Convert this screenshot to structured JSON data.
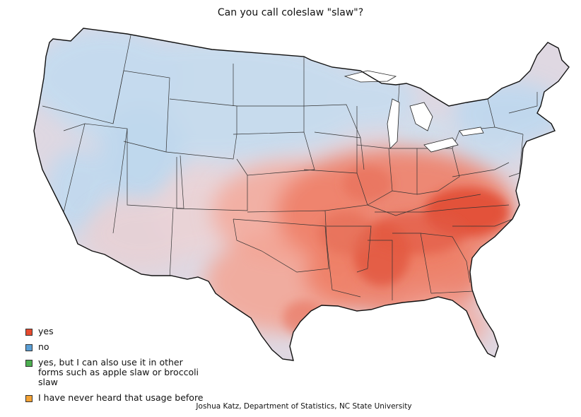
{
  "title": "Can you call coleslaw \"slaw\"?",
  "legend": [
    {
      "label": "yes",
      "color": "#e64a2e"
    },
    {
      "label": "no",
      "color": "#5a9fd6"
    },
    {
      "label": "yes, but I can also use it in other forms such as apple slaw or broccoli slaw",
      "color": "#4caf50"
    },
    {
      "label": "I have never heard that usage before",
      "color": "#f4a234"
    }
  ],
  "credit": "Joshua Katz, Department of Statistics, NC State University",
  "colors": {
    "yes": "#e64a2e",
    "no": "#5a9fd6",
    "neutral": "#e2d6de",
    "border": "#1a1a1a",
    "state_lines": "#333333"
  },
  "regions": {
    "north_and_west": "no",
    "south_and_midwest_core": "yes"
  }
}
